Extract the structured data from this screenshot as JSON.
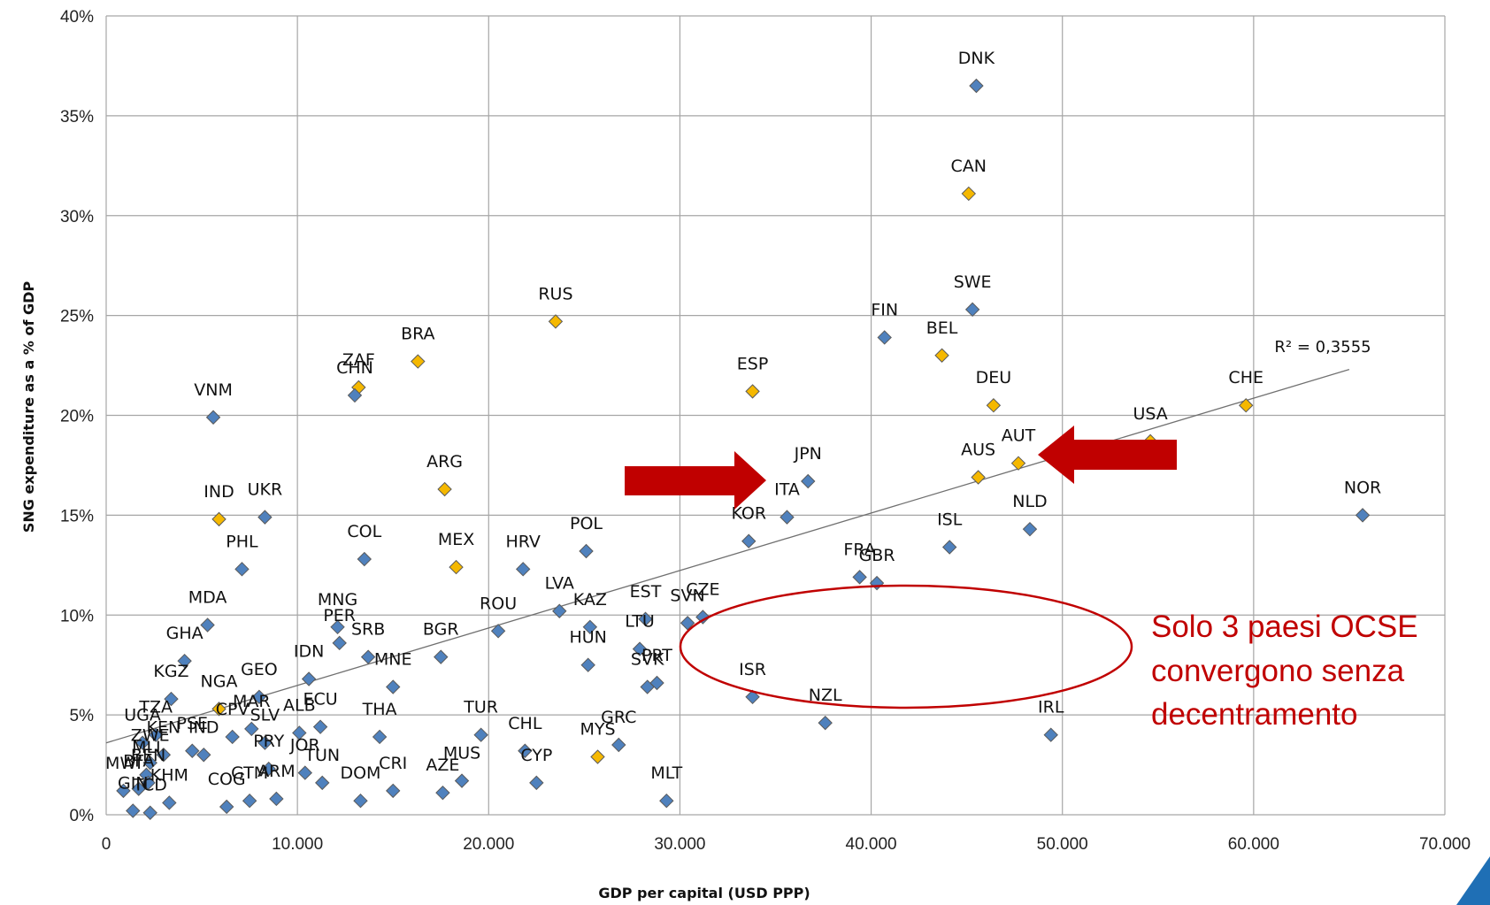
{
  "chart_data": {
    "type": "scatter",
    "xlabel": "GDP per capital (USD PPP)",
    "ylabel": "SNG expenditure as a % of GDP",
    "xlim": [
      0,
      70000
    ],
    "ylim": [
      0,
      40
    ],
    "x_ticks": [
      0,
      10000,
      20000,
      30000,
      40000,
      50000,
      60000,
      70000
    ],
    "x_tick_labels": [
      "0",
      "10.000",
      "20.000",
      "30.000",
      "40.000",
      "50.000",
      "60.000",
      "70.000"
    ],
    "y_ticks": [
      0,
      5,
      10,
      15,
      20,
      25,
      30,
      35,
      40
    ],
    "y_tick_labels": [
      "0%",
      "5%",
      "10%",
      "15%",
      "20%",
      "25%",
      "30%",
      "35%",
      "40%"
    ],
    "grid": true,
    "trendline": {
      "type": "linear",
      "x": [
        0,
        65000
      ],
      "y": [
        3.6,
        22.3
      ],
      "label": "R² = 0,3555"
    },
    "colors": {
      "unitary": "#4f81bd",
      "federal": "#f5b800",
      "marker_edge": "#5a5a5a",
      "annotation": "#c00000",
      "grid": "#a6a6a6"
    },
    "points": [
      {
        "label": "DNK",
        "x": 45500,
        "y": 36.5,
        "group": "unitary"
      },
      {
        "label": "CAN",
        "x": 45100,
        "y": 31.1,
        "group": "federal"
      },
      {
        "label": "SWE",
        "x": 45300,
        "y": 25.3,
        "group": "unitary"
      },
      {
        "label": "FIN",
        "x": 40700,
        "y": 23.9,
        "group": "unitary"
      },
      {
        "label": "BEL",
        "x": 43700,
        "y": 23.0,
        "group": "federal"
      },
      {
        "label": "DEU",
        "x": 46400,
        "y": 20.5,
        "group": "federal"
      },
      {
        "label": "CHE",
        "x": 59600,
        "y": 20.5,
        "group": "federal"
      },
      {
        "label": "USA",
        "x": 54600,
        "y": 18.7,
        "group": "federal"
      },
      {
        "label": "AUT",
        "x": 47700,
        "y": 17.6,
        "group": "federal"
      },
      {
        "label": "AUS",
        "x": 45600,
        "y": 16.9,
        "group": "federal"
      },
      {
        "label": "NOR",
        "x": 65700,
        "y": 15.0,
        "group": "unitary"
      },
      {
        "label": "NLD",
        "x": 48300,
        "y": 14.3,
        "group": "unitary"
      },
      {
        "label": "ISL",
        "x": 44100,
        "y": 13.4,
        "group": "unitary"
      },
      {
        "label": "FRA",
        "x": 39400,
        "y": 11.9,
        "group": "unitary"
      },
      {
        "label": "GBR",
        "x": 40300,
        "y": 11.6,
        "group": "unitary"
      },
      {
        "label": "JPN",
        "x": 36700,
        "y": 16.7,
        "group": "unitary"
      },
      {
        "label": "ITA",
        "x": 35600,
        "y": 14.9,
        "group": "unitary"
      },
      {
        "label": "KOR",
        "x": 33600,
        "y": 13.7,
        "group": "unitary"
      },
      {
        "label": "ESP",
        "x": 33800,
        "y": 21.2,
        "group": "federal"
      },
      {
        "label": "ISR",
        "x": 33800,
        "y": 5.9,
        "group": "unitary"
      },
      {
        "label": "NZL",
        "x": 37600,
        "y": 4.6,
        "group": "unitary"
      },
      {
        "label": "IRL",
        "x": 49400,
        "y": 4.0,
        "group": "unitary"
      },
      {
        "label": "RUS",
        "x": 23500,
        "y": 24.7,
        "group": "federal"
      },
      {
        "label": "BRA",
        "x": 16300,
        "y": 22.7,
        "group": "federal"
      },
      {
        "label": "ZAF",
        "x": 13200,
        "y": 21.4,
        "group": "federal"
      },
      {
        "label": "CHN",
        "x": 13000,
        "y": 21.0,
        "group": "unitary"
      },
      {
        "label": "VNM",
        "x": 5600,
        "y": 19.9,
        "group": "unitary"
      },
      {
        "label": "ARG",
        "x": 17700,
        "y": 16.3,
        "group": "federal"
      },
      {
        "label": "IND",
        "x": 5900,
        "y": 14.8,
        "group": "federal"
      },
      {
        "label": "UKR",
        "x": 8300,
        "y": 14.9,
        "group": "unitary"
      },
      {
        "label": "PHL",
        "x": 7100,
        "y": 12.3,
        "group": "unitary"
      },
      {
        "label": "COL",
        "x": 13500,
        "y": 12.8,
        "group": "unitary"
      },
      {
        "label": "MEX",
        "x": 18300,
        "y": 12.4,
        "group": "federal"
      },
      {
        "label": "HRV",
        "x": 21800,
        "y": 12.3,
        "group": "unitary"
      },
      {
        "label": "POL",
        "x": 25100,
        "y": 13.2,
        "group": "unitary"
      },
      {
        "label": "MDA",
        "x": 5300,
        "y": 9.5,
        "group": "unitary"
      },
      {
        "label": "MNG",
        "x": 12100,
        "y": 9.4,
        "group": "unitary"
      },
      {
        "label": "PER",
        "x": 12200,
        "y": 8.6,
        "group": "unitary"
      },
      {
        "label": "SRB",
        "x": 13700,
        "y": 7.9,
        "group": "unitary"
      },
      {
        "label": "BGR",
        "x": 17500,
        "y": 7.9,
        "group": "unitary"
      },
      {
        "label": "ROU",
        "x": 20500,
        "y": 9.2,
        "group": "unitary"
      },
      {
        "label": "LVA",
        "x": 23700,
        "y": 10.2,
        "group": "unitary"
      },
      {
        "label": "KAZ",
        "x": 25300,
        "y": 9.4,
        "group": "unitary"
      },
      {
        "label": "HUN",
        "x": 25200,
        "y": 7.5,
        "group": "unitary"
      },
      {
        "label": "EST",
        "x": 28200,
        "y": 9.8,
        "group": "unitary"
      },
      {
        "label": "LTU",
        "x": 27900,
        "y": 8.3,
        "group": "unitary"
      },
      {
        "label": "SVN",
        "x": 30400,
        "y": 9.6,
        "group": "unitary"
      },
      {
        "label": "CZE",
        "x": 31200,
        "y": 9.9,
        "group": "unitary"
      },
      {
        "label": "PRT",
        "x": 28800,
        "y": 6.6,
        "group": "unitary"
      },
      {
        "label": "SVK",
        "x": 28300,
        "y": 6.4,
        "group": "unitary"
      },
      {
        "label": "GHA",
        "x": 4100,
        "y": 7.7,
        "group": "unitary"
      },
      {
        "label": "KGZ",
        "x": 3400,
        "y": 5.8,
        "group": "unitary"
      },
      {
        "label": "NGA",
        "x": 5900,
        "y": 5.3,
        "group": "federal"
      },
      {
        "label": "GEO",
        "x": 8000,
        "y": 5.9,
        "group": "unitary"
      },
      {
        "label": "IDN",
        "x": 10600,
        "y": 6.8,
        "group": "unitary"
      },
      {
        "label": "MNE",
        "x": 15000,
        "y": 6.4,
        "group": "unitary"
      },
      {
        "label": "ECU",
        "x": 11200,
        "y": 4.4,
        "group": "unitary"
      },
      {
        "label": "ALB",
        "x": 10100,
        "y": 4.1,
        "group": "unitary"
      },
      {
        "label": "THA",
        "x": 14300,
        "y": 3.9,
        "group": "unitary"
      },
      {
        "label": "TUR",
        "x": 19600,
        "y": 4.0,
        "group": "unitary"
      },
      {
        "label": "CHL",
        "x": 21900,
        "y": 3.2,
        "group": "unitary"
      },
      {
        "label": "MYS",
        "x": 25700,
        "y": 2.9,
        "group": "federal"
      },
      {
        "label": "GRC",
        "x": 26800,
        "y": 3.5,
        "group": "unitary"
      },
      {
        "label": "CYP",
        "x": 22500,
        "y": 1.6,
        "group": "unitary"
      },
      {
        "label": "MLT",
        "x": 29300,
        "y": 0.7,
        "group": "unitary"
      },
      {
        "label": "MUS",
        "x": 18600,
        "y": 1.7,
        "group": "unitary"
      },
      {
        "label": "AZE",
        "x": 17600,
        "y": 1.1,
        "group": "unitary"
      },
      {
        "label": "CRI",
        "x": 15000,
        "y": 1.2,
        "group": "unitary"
      },
      {
        "label": "DOM",
        "x": 13300,
        "y": 0.7,
        "group": "unitary"
      },
      {
        "label": "TUN",
        "x": 11300,
        "y": 1.6,
        "group": "unitary"
      },
      {
        "label": "JOR",
        "x": 10400,
        "y": 2.1,
        "group": "unitary"
      },
      {
        "label": "ARM",
        "x": 8900,
        "y": 0.8,
        "group": "unitary"
      },
      {
        "label": "SLV",
        "x": 8300,
        "y": 3.6,
        "group": "unitary"
      },
      {
        "label": "PRY",
        "x": 8500,
        "y": 2.3,
        "group": "unitary"
      },
      {
        "label": "MAR",
        "x": 7600,
        "y": 4.3,
        "group": "unitary"
      },
      {
        "label": "CPV",
        "x": 6600,
        "y": 3.9,
        "group": "unitary"
      },
      {
        "label": "GTM",
        "x": 7500,
        "y": 0.7,
        "group": "unitary"
      },
      {
        "label": "COG",
        "x": 6300,
        "y": 0.4,
        "group": "unitary"
      },
      {
        "label": "IND",
        "x": 5100,
        "y": 3.0,
        "group": "unitary"
      },
      {
        "label": "PSE",
        "x": 4500,
        "y": 3.2,
        "group": "unitary"
      },
      {
        "label": "KEN",
        "x": 3000,
        "y": 3.0,
        "group": "unitary"
      },
      {
        "label": "TZA",
        "x": 2600,
        "y": 4.0,
        "group": "unitary"
      },
      {
        "label": "UGA",
        "x": 1900,
        "y": 3.6,
        "group": "unitary"
      },
      {
        "label": "ZWE",
        "x": 2300,
        "y": 2.6,
        "group": "unitary"
      },
      {
        "label": "MLI",
        "x": 2100,
        "y": 2.0,
        "group": "unitary"
      },
      {
        "label": "BEN",
        "x": 2200,
        "y": 1.6,
        "group": "unitary"
      },
      {
        "label": "KHM",
        "x": 3300,
        "y": 0.6,
        "group": "unitary"
      },
      {
        "label": "MWI",
        "x": 900,
        "y": 1.2,
        "group": "unitary"
      },
      {
        "label": "GIN",
        "x": 1400,
        "y": 0.2,
        "group": "unitary"
      },
      {
        "label": "TCD",
        "x": 2300,
        "y": 0.1,
        "group": "unitary"
      },
      {
        "label": "BFA",
        "x": 1700,
        "y": 1.3,
        "group": "unitary"
      }
    ],
    "annotation": {
      "text_lines": [
        "Solo 3 paesi OCSE",
        "convergono senza",
        "decentramento"
      ],
      "highlighted": [
        "ISR",
        "NZL",
        "IRL"
      ]
    },
    "arrows": [
      {
        "name": "arrow-to-ita",
        "direction": "right",
        "target": "ITA"
      },
      {
        "name": "arrow-to-aut",
        "direction": "left",
        "target": "AUT"
      }
    ]
  }
}
